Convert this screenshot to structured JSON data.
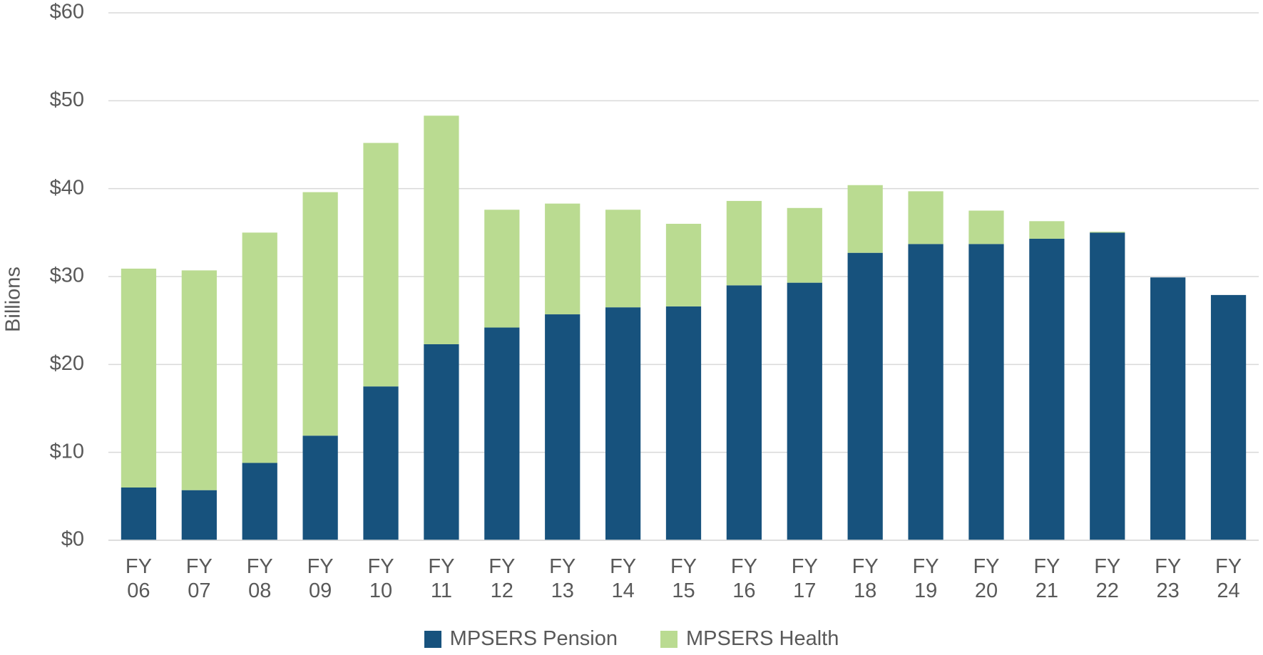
{
  "chart_data": {
    "type": "stacked_bar",
    "y_axis_label": "Billions",
    "categories": [
      "FY 06",
      "FY 07",
      "FY 08",
      "FY 09",
      "FY 10",
      "FY 11",
      "FY 12",
      "FY 13",
      "FY 14",
      "FY 15",
      "FY 16",
      "FY 17",
      "FY 18",
      "FY 19",
      "FY 20",
      "FY 21",
      "FY 22",
      "FY 23",
      "FY 24"
    ],
    "series": [
      {
        "name": "MPSERS Pension",
        "color": "#17527d",
        "values": [
          6.0,
          5.7,
          8.8,
          11.9,
          17.5,
          22.3,
          24.2,
          25.7,
          26.5,
          26.6,
          29.0,
          29.3,
          32.7,
          33.7,
          33.7,
          34.3,
          35.0,
          29.9,
          27.9
        ]
      },
      {
        "name": "MPSERS Health",
        "color": "#badb91",
        "values": [
          24.9,
          25.0,
          26.2,
          27.7,
          27.7,
          26.0,
          13.4,
          12.6,
          11.1,
          9.4,
          9.6,
          8.5,
          7.7,
          6.0,
          3.8,
          2.0,
          0.1,
          0,
          0
        ]
      }
    ],
    "ylim": [
      0,
      60
    ],
    "yticks": [
      {
        "value": 0,
        "label": "$0"
      },
      {
        "value": 10,
        "label": "$10"
      },
      {
        "value": 20,
        "label": "$20"
      },
      {
        "value": 30,
        "label": "$30"
      },
      {
        "value": 40,
        "label": "$40"
      },
      {
        "value": 50,
        "label": "$50"
      },
      {
        "value": 60,
        "label": "$60"
      }
    ],
    "grid": true
  }
}
